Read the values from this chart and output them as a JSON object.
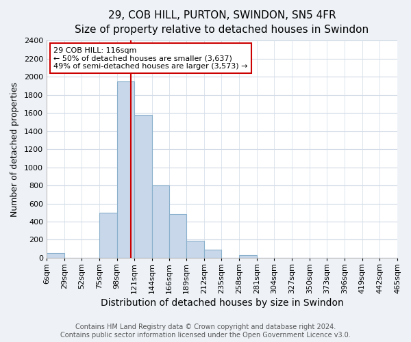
{
  "title": "29, COB HILL, PURTON, SWINDON, SN5 4FR",
  "subtitle": "Size of property relative to detached houses in Swindon",
  "xlabel": "Distribution of detached houses by size in Swindon",
  "ylabel": "Number of detached properties",
  "bar_edges": [
    6,
    29,
    52,
    75,
    98,
    121,
    144,
    166,
    189,
    212,
    235,
    258,
    281,
    304,
    327,
    350,
    373,
    396,
    419,
    442,
    465
  ],
  "bar_heights": [
    50,
    0,
    0,
    500,
    1950,
    1580,
    800,
    480,
    190,
    90,
    0,
    30,
    0,
    0,
    0,
    0,
    0,
    0,
    0,
    0
  ],
  "bar_color": "#c8d8ea",
  "bar_edgecolor": "#8ab0cc",
  "vline_x": 116,
  "vline_color": "#cc0000",
  "annotation_title": "29 COB HILL: 116sqm",
  "annotation_line1": "← 50% of detached houses are smaller (3,637)",
  "annotation_line2": "49% of semi-detached houses are larger (3,573) →",
  "annotation_box_facecolor": "white",
  "annotation_box_edgecolor": "#cc0000",
  "ylim": [
    0,
    2400
  ],
  "yticks": [
    0,
    200,
    400,
    600,
    800,
    1000,
    1200,
    1400,
    1600,
    1800,
    2000,
    2200,
    2400
  ],
  "xtick_labels": [
    "6sqm",
    "29sqm",
    "52sqm",
    "75sqm",
    "98sqm",
    "121sqm",
    "144sqm",
    "166sqm",
    "189sqm",
    "212sqm",
    "235sqm",
    "258sqm",
    "281sqm",
    "304sqm",
    "327sqm",
    "350sqm",
    "373sqm",
    "396sqm",
    "419sqm",
    "442sqm",
    "465sqm"
  ],
  "footer_line1": "Contains HM Land Registry data © Crown copyright and database right 2024.",
  "footer_line2": "Contains public sector information licensed under the Open Government Licence v3.0.",
  "background_color": "#eef2f7",
  "plot_bg_color": "#ffffff",
  "grid_color": "#d0dae6",
  "title_fontsize": 11,
  "subtitle_fontsize": 10,
  "xlabel_fontsize": 10,
  "ylabel_fontsize": 9,
  "tick_fontsize": 8,
  "annotation_fontsize": 8,
  "footer_fontsize": 7
}
